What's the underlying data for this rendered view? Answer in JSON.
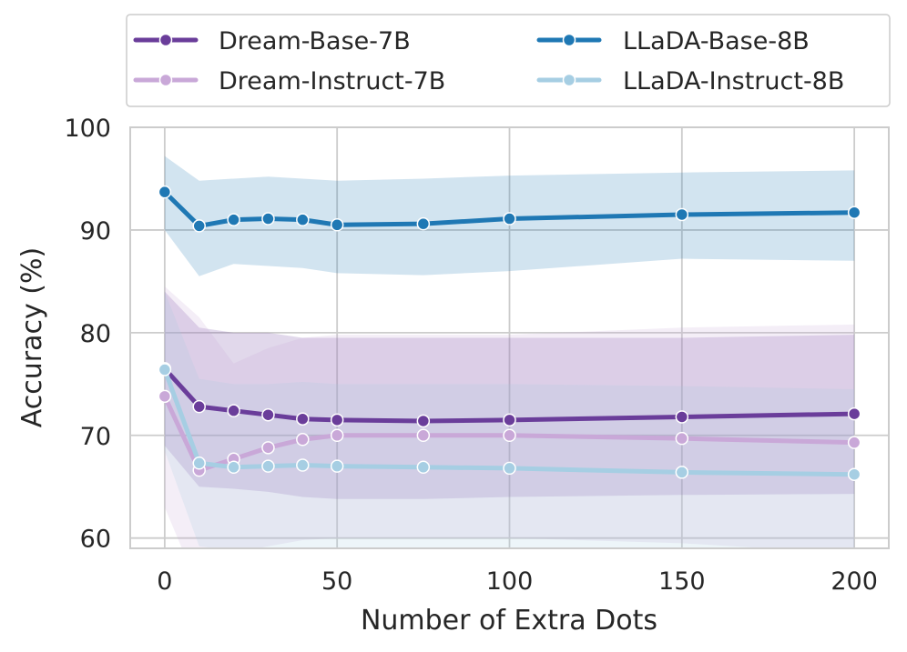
{
  "chart_data": {
    "type": "line",
    "title": "",
    "xlabel": "Number of Extra Dots",
    "ylabel": "Accuracy (%)",
    "xlim": [
      -10,
      210
    ],
    "ylim": [
      59,
      100
    ],
    "x_ticks": [
      0,
      50,
      100,
      150,
      200
    ],
    "y_ticks": [
      60,
      70,
      80,
      90,
      100
    ],
    "grid": true,
    "legend_placement": "top",
    "x": [
      0,
      10,
      20,
      30,
      40,
      50,
      75,
      100,
      150,
      200
    ],
    "series": [
      {
        "name": "Dream-Base-7B",
        "color": "#6a3d9a",
        "values": [
          76.5,
          72.8,
          72.4,
          72.0,
          71.6,
          71.5,
          71.4,
          71.5,
          71.8,
          72.1
        ],
        "band_upper": [
          84.0,
          80.5,
          80.0,
          80.0,
          79.5,
          79.5,
          79.5,
          79.5,
          79.5,
          79.8
        ],
        "band_lower": [
          69.0,
          65.0,
          64.8,
          64.5,
          64.0,
          63.8,
          63.8,
          64.0,
          64.2,
          64.3
        ]
      },
      {
        "name": "Dream-Instruct-7B",
        "color": "#c9a8d8",
        "values": [
          73.8,
          66.6,
          67.7,
          68.8,
          69.6,
          70.0,
          70.0,
          70.0,
          69.7,
          69.3
        ],
        "band_upper": [
          84.5,
          81.5,
          77.0,
          78.5,
          79.5,
          79.8,
          79.8,
          79.8,
          80.5,
          80.8
        ],
        "band_lower": [
          63.0,
          55.0,
          58.5,
          59.2,
          59.8,
          60.0,
          60.0,
          60.0,
          59.5,
          58.5
        ]
      },
      {
        "name": "LLaDA-Base-8B",
        "color": "#1f78b4",
        "values": [
          93.7,
          90.4,
          91.0,
          91.1,
          91.0,
          90.5,
          90.6,
          91.1,
          91.5,
          91.7
        ],
        "band_upper": [
          97.2,
          94.8,
          95.0,
          95.2,
          95.0,
          94.8,
          95.0,
          95.3,
          95.6,
          95.8
        ],
        "band_lower": [
          90.0,
          85.5,
          86.7,
          86.5,
          86.3,
          85.8,
          85.6,
          86.0,
          87.2,
          87.0
        ]
      },
      {
        "name": "LLaDA-Instruct-8B",
        "color": "#a6cee3",
        "values": [
          76.4,
          67.3,
          66.9,
          67.0,
          67.1,
          67.0,
          66.9,
          66.8,
          66.4,
          66.2
        ],
        "band_upper": [
          84.0,
          75.5,
          75.0,
          75.0,
          75.2,
          75.0,
          75.0,
          75.0,
          74.8,
          74.5
        ],
        "band_lower": [
          68.5,
          59.2,
          58.8,
          59.0,
          59.0,
          59.0,
          58.8,
          58.8,
          58.5,
          58.2
        ]
      }
    ]
  }
}
